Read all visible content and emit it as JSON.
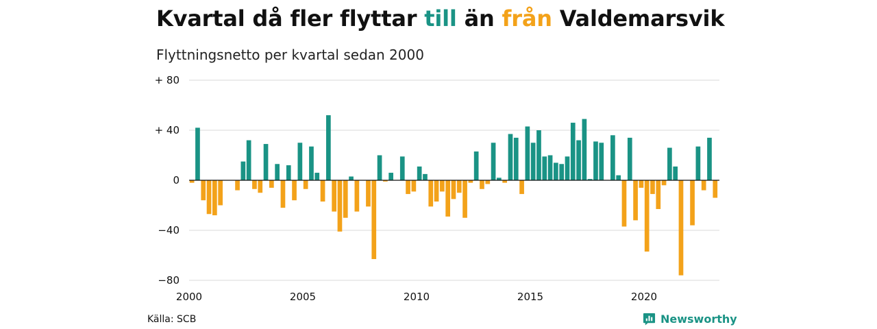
{
  "title": {
    "part1": "Kvartal då fler flyttar ",
    "in_word": "till",
    "part2": " än ",
    "out_word": "från",
    "part3": " Valdemarsvik"
  },
  "subtitle": "Flyttningsnetto per kvartal sedan 2000",
  "source": "Källa: SCB",
  "brand": {
    "name": "Newsworthy",
    "icon": "newsworthy-logo-icon"
  },
  "colors": {
    "positive": "#1a9385",
    "negative": "#f3a21a",
    "grid": "#d9d9d9",
    "axis": "#111111"
  },
  "chart_data": {
    "type": "bar",
    "title": "Kvartal då fler flyttar till än från Valdemarsvik",
    "subtitle": "Flyttningsnetto per kvartal sedan 2000",
    "xlabel": "",
    "ylabel": "",
    "x_start_year": 2000,
    "periods_per_year": 4,
    "xticks": [
      2000,
      2005,
      2010,
      2015,
      2020
    ],
    "ylim": [
      -80,
      80
    ],
    "yticks": [
      80,
      40,
      0,
      -40,
      -80
    ],
    "ytick_labels": [
      "+ 80",
      "+ 40",
      "0",
      "−40",
      "−80"
    ],
    "grid": true,
    "series": [
      {
        "values": [
          -2,
          42,
          -16,
          -27,
          -28,
          -20,
          0,
          0,
          -8,
          15,
          32,
          -7,
          -10,
          29,
          -6,
          13,
          -22,
          12,
          -16,
          30,
          -7,
          27,
          6,
          -17,
          52,
          -25,
          -41,
          -30,
          3,
          -25,
          0,
          -21,
          -63,
          20,
          -1,
          6,
          0,
          19,
          -11,
          -9,
          11,
          5,
          -21,
          -17,
          -9,
          -29,
          -15,
          -10,
          -30,
          -2,
          23,
          -7,
          -3,
          30,
          2,
          -2,
          37,
          34,
          -11,
          43,
          30,
          40,
          19,
          20,
          14,
          13,
          19,
          46,
          32,
          49,
          1,
          31,
          30,
          0,
          36,
          4,
          -37,
          34,
          -32,
          -6,
          -57,
          -11,
          -23,
          -4,
          26,
          11,
          -76,
          0,
          -36,
          27,
          -8,
          34,
          -14
        ]
      }
    ]
  }
}
